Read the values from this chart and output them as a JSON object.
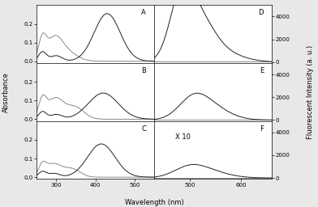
{
  "fig_bg": "#e8e8e8",
  "panel_bg": "#ffffff",
  "line_color_open": "#888888",
  "line_color_pss": "#222222",
  "abs_xlim": [
    250,
    550
  ],
  "abs_xticks": [
    300,
    400,
    500
  ],
  "fl_xlim": [
    430,
    660
  ],
  "fl_xticks": [
    500,
    600
  ],
  "abs_ylim": [
    -0.01,
    0.3
  ],
  "abs_yticks": [
    0.0,
    0.1,
    0.2
  ],
  "fl_ylim": [
    -100,
    5000
  ],
  "fl_yticks": [
    0,
    2000,
    4000
  ],
  "panel_labels": [
    "A",
    "B",
    "C",
    "D",
    "E",
    "F"
  ],
  "xlabel": "Wavelength (nm)",
  "ylabel_left": "Absorbance",
  "ylabel_right": "Fluorescent Intensity (a. u.)",
  "annotation_F": "X 10"
}
